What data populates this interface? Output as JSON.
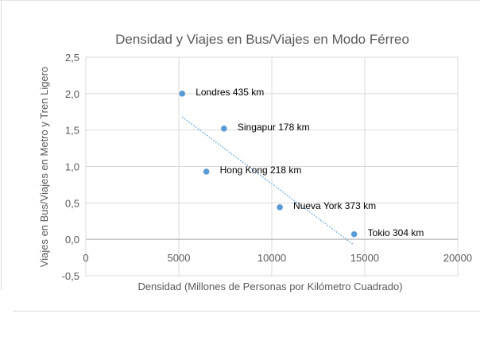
{
  "chart_data": {
    "type": "scatter",
    "title": "Densidad y Viajes en Bus/Viajes en Modo Férreo",
    "xlabel": "Densidad (Millones de Personas por Kilómetro Cuadrado)",
    "ylabel": "Viajes en Bus/Viajes en Metro y Tren Ligero",
    "xlim": [
      0,
      20000
    ],
    "ylim": [
      -0.5,
      2.5
    ],
    "xticks": [
      0,
      5000,
      10000,
      15000,
      20000
    ],
    "xtick_labels": [
      "0",
      "5000",
      "10000",
      "15000",
      "20000"
    ],
    "yticks": [
      -0.5,
      0,
      0.5,
      1,
      1.5,
      2,
      2.5
    ],
    "ytick_labels": [
      "-0,5",
      "0,0",
      "0,5",
      "1,0",
      "1,5",
      "2,0",
      "2,5"
    ],
    "grid": true,
    "marker_color": "#5b9bd5",
    "trendline_color": "#5b9bd5",
    "points": [
      {
        "x": 5180,
        "y": 2.0,
        "label": "Londres 435 km"
      },
      {
        "x": 7430,
        "y": 1.52,
        "label": "Singapur 178 km"
      },
      {
        "x": 6480,
        "y": 0.93,
        "label": "Hong Kong 218 km"
      },
      {
        "x": 10430,
        "y": 0.44,
        "label": "Nueva York 373 km"
      },
      {
        "x": 14430,
        "y": 0.07,
        "label": "Tokio 304 km"
      }
    ],
    "trendline": {
      "type": "linear",
      "from": [
        5180,
        1.68
      ],
      "to": [
        14380,
        -0.07
      ],
      "style": "dotted"
    }
  }
}
